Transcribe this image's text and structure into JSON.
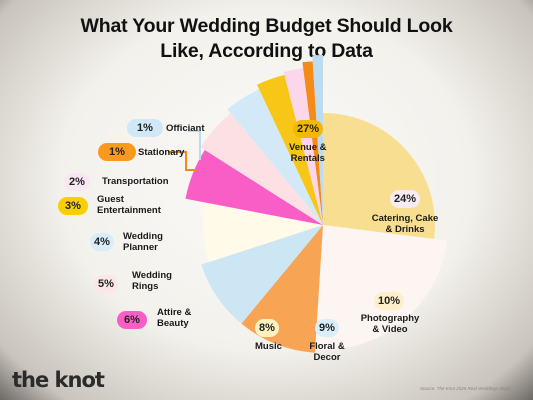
{
  "title": {
    "line1": "What Your Wedding Budget Should Look",
    "line2": "Like, According to Data"
  },
  "brand": "the knot",
  "source": "Source: The Knot 2025 Real Weddings Study",
  "chart_data": {
    "type": "pie",
    "title": "What Your Wedding Budget Should Look Like, According to Data",
    "unit": "%",
    "slices": [
      {
        "label": "Venue & Rentals",
        "value": 27,
        "value_label": "27%",
        "color": "#f8de91",
        "pill": "#f5b800"
      },
      {
        "label": "Catering, Cake & Drinks",
        "value": 24,
        "value_label": "24%",
        "color": "#fdf5f1",
        "pill": "#f7ecf1"
      },
      {
        "label": "Photography & Video",
        "value": 10,
        "value_label": "10%",
        "color": "#f7a455",
        "pill": "#fcefc9"
      },
      {
        "label": "Floral & Decor",
        "value": 9,
        "value_label": "9%",
        "color": "#cde6f3",
        "pill": "#d9eef9"
      },
      {
        "label": "Music",
        "value": 8,
        "value_label": "8%",
        "color": "#fffbe8",
        "pill": "#fcf2c0"
      },
      {
        "label": "Attire & Beauty",
        "value": 6,
        "value_label": "6%",
        "color": "#f95ec6",
        "pill": "#f95ec6"
      },
      {
        "label": "Wedding Rings",
        "value": 5,
        "value_label": "5%",
        "color": "#fde0e4",
        "pill": "#fde7e6"
      },
      {
        "label": "Wedding Planner",
        "value": 4,
        "value_label": "4%",
        "color": "#d4e9f7",
        "pill": "#d9ecf9"
      },
      {
        "label": "Guest Entertainment",
        "value": 3,
        "value_label": "3%",
        "color": "#f8c617",
        "pill": "#f8d000"
      },
      {
        "label": "Transportation",
        "value": 2,
        "value_label": "2%",
        "color": "#fcd7eb",
        "pill": "#f9e6f2"
      },
      {
        "label": "Stationary",
        "value": 1,
        "value_label": "1%",
        "color": "#f48a17",
        "pill": "#f79a1f"
      },
      {
        "label": "Officiant",
        "value": 1,
        "value_label": "1%",
        "color": "#bcdcf1",
        "pill": "#cfe7f7"
      }
    ]
  }
}
